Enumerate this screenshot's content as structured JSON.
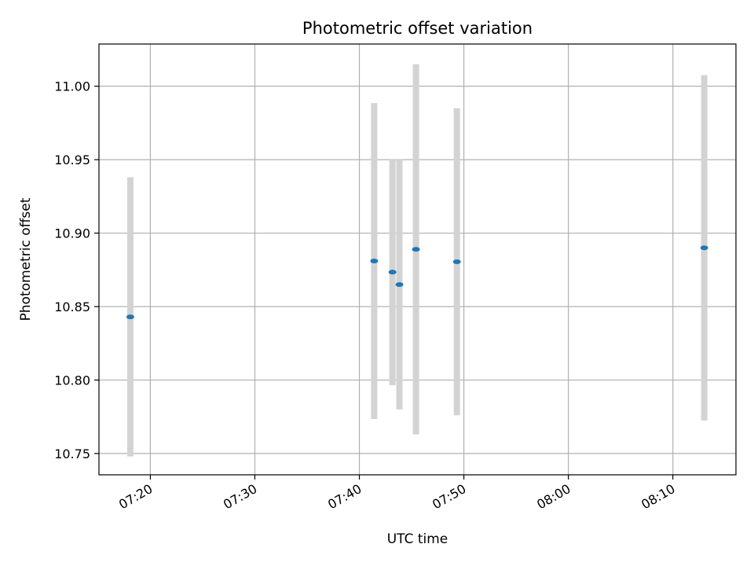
{
  "chart_data": {
    "type": "scatter",
    "title": "Photometric offset variation",
    "xlabel": "UTC time",
    "ylabel": "Photometric offset",
    "x_unit": "UTC time (HH:MM)",
    "xlim": [
      "07:15:05",
      "08:16:02"
    ],
    "ylim": [
      10.7355,
      11.0287
    ],
    "x_ticks": [
      "07:20",
      "07:30",
      "07:40",
      "07:50",
      "08:00",
      "08:10"
    ],
    "y_ticks": [
      "10.75",
      "10.80",
      "10.85",
      "10.90",
      "10.95",
      "11.00"
    ],
    "grid": true,
    "marker_color": "#1f77b4",
    "errorbar_color": "#d3d3d3",
    "series": [
      {
        "points": [
          {
            "x": "07:18:05",
            "y": 10.843,
            "yerr": 0.095
          },
          {
            "x": "07:41:25",
            "y": 10.881,
            "yerr": 0.1075
          },
          {
            "x": "07:43:10",
            "y": 10.8735,
            "yerr": 0.077
          },
          {
            "x": "07:43:50",
            "y": 10.865,
            "yerr": 0.085
          },
          {
            "x": "07:45:25",
            "y": 10.889,
            "yerr": 0.126
          },
          {
            "x": "07:49:20",
            "y": 10.8805,
            "yerr": 0.1045
          },
          {
            "x": "08:13:00",
            "y": 10.89,
            "yerr": 0.1175
          }
        ]
      }
    ]
  }
}
